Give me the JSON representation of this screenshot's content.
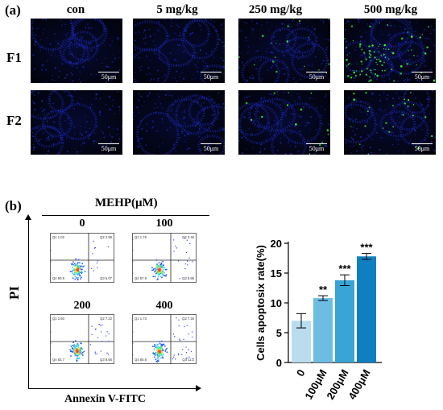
{
  "panel_a": {
    "label": "(a)",
    "columns": [
      "con",
      "5 mg/kg",
      "250 mg/kg",
      "500 mg/kg"
    ],
    "rows": [
      "F1",
      "F2"
    ],
    "scale_label": "50μm",
    "colors": {
      "nuclei": "#1e2fd0",
      "apoptotic": "#39ff3a",
      "background": "#030516"
    }
  },
  "panel_b": {
    "label": "(b)",
    "treatment_title": "MEHP(μM)",
    "y_label": "PI",
    "x_label": "Annexin V-FITC",
    "plots": [
      {
        "label": "0",
        "q1": "Q1 1.02",
        "q2": "Q2 2.98",
        "q3": "Q3 5.07",
        "q4": "Q4 90.9"
      },
      {
        "label": "100",
        "q1": "Q1 1.76",
        "q2": "Q2 3.46",
        "q3": "Q3 6.86",
        "q4": "Q4 87.9"
      },
      {
        "label": "200",
        "q1": "Q1 2.50",
        "q2": "Q2 7.22",
        "q3": "Q3 8.56",
        "q4": "Q4 82.7"
      },
      {
        "label": "400",
        "q1": "Q1 1.73",
        "q2": "Q2 7.26",
        "q3": "Q3 11.2",
        "q4": "Q4 80.8"
      }
    ]
  },
  "chart_data": {
    "type": "bar",
    "categories": [
      "0",
      "100μM",
      "200μM",
      "400μM"
    ],
    "values": [
      7.0,
      10.8,
      13.8,
      17.8
    ],
    "errors": [
      1.2,
      0.4,
      0.9,
      0.5
    ],
    "significance": [
      "",
      "**",
      "***",
      "***"
    ],
    "colors": [
      "#b9dcef",
      "#6dbde3",
      "#3aa4d6",
      "#0f7fc0"
    ],
    "ylabel": "Cells apoptosix rate(%)",
    "xlabel": "",
    "ylim": [
      0,
      20
    ],
    "yticks": [
      0,
      5,
      10,
      15,
      20
    ],
    "grid": false
  }
}
